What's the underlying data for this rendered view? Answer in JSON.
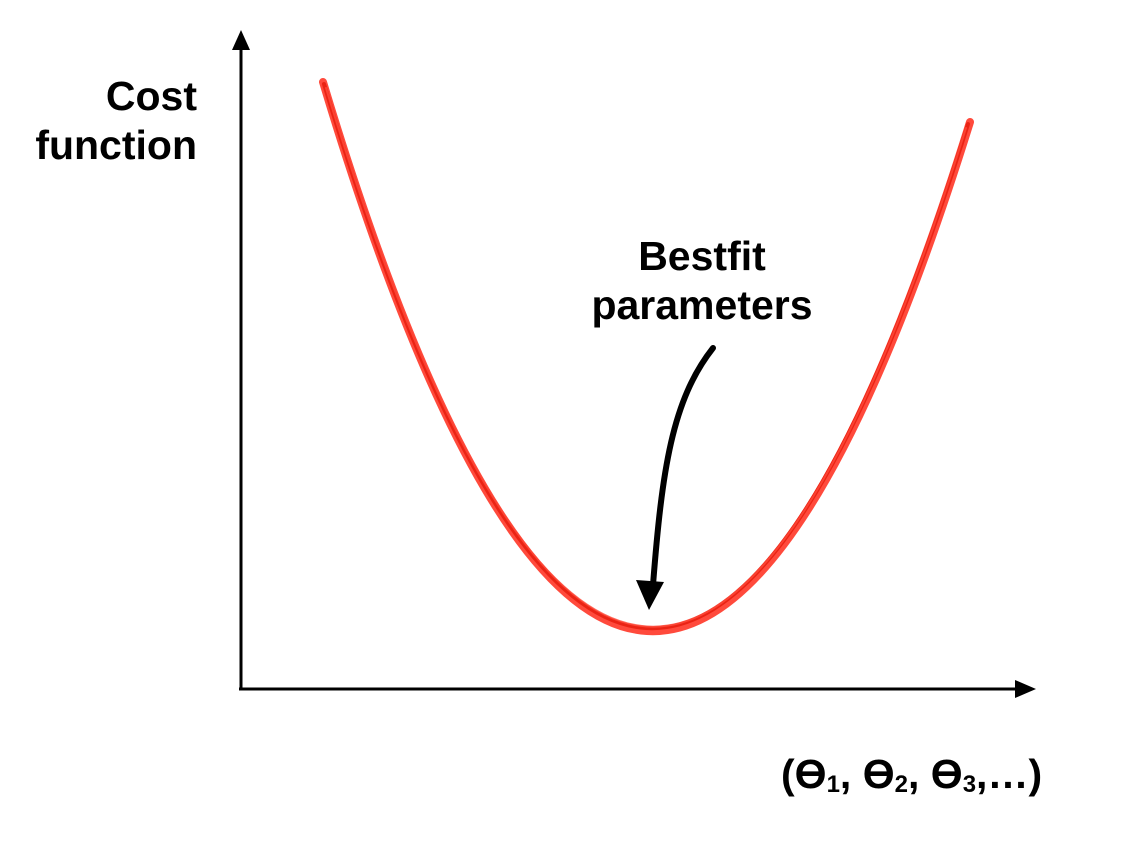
{
  "diagram": {
    "y_axis_label_line1": "Cost",
    "y_axis_label_line2": "function",
    "annotation_line1": "Bestfit",
    "annotation_line2": "parameters",
    "x_axis_label": {
      "symbol": "ϴ",
      "sub1": "1",
      "sub2": "2",
      "sub3": "3",
      "open": "(",
      "sep": ", ",
      "tail": ",…)"
    },
    "colors": {
      "curve": "#ff2a1a",
      "axes": "#000000",
      "text": "#000000"
    }
  }
}
